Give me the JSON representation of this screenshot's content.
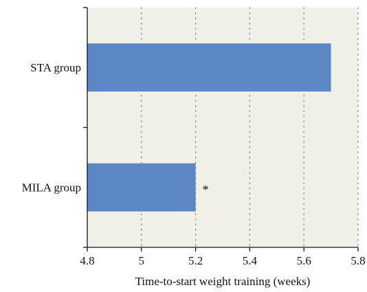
{
  "chart_data": {
    "type": "bar",
    "orientation": "horizontal",
    "categories": [
      "STA group",
      "MILA group"
    ],
    "values": [
      5.7,
      5.2
    ],
    "annotations": [
      {
        "category": "MILA group",
        "text": "*"
      }
    ],
    "title": "",
    "xlabel": "Time-to-start weight training (weeks)",
    "ylabel": "",
    "xlim": [
      4.8,
      5.8
    ],
    "xticks": [
      4.8,
      5.0,
      5.2,
      5.4,
      5.6,
      5.8
    ],
    "xtick_labels": [
      "4.8",
      "5",
      "5.2",
      "5.4",
      "5.6",
      "5.8"
    ],
    "grid": "vertical dotted",
    "legend": "none",
    "colors": {
      "bar": "#5b87c5",
      "plot_background": "#f1f0e8",
      "grid": "#7a7a7a",
      "axis": "#111111"
    }
  }
}
